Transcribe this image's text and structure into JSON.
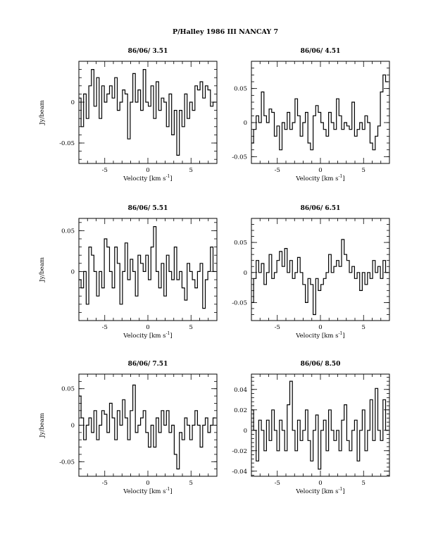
{
  "page_title": "P/Halley 1986 III   NANCAY      7",
  "chart_data": [
    {
      "type": "line",
      "title": "86/06/ 3.51",
      "xlabel": "Velocity [km s",
      "xlabel_sup": "-1",
      "xlabel_end": "]",
      "ylabel": "Jy/beam",
      "xlim": [
        -8,
        8
      ],
      "ylim": [
        -0.075,
        0.05
      ],
      "xticks": [
        -5,
        0,
        5
      ],
      "xtick_labels": [
        "-5",
        "0",
        "5"
      ],
      "yticks": [
        0,
        -0.05
      ],
      "ytick_labels": [
        "0",
        "-0.05"
      ],
      "series": [
        {
          "x": [
            -7.9,
            -7.6,
            -7.3,
            -7.0,
            -6.7,
            -6.4,
            -6.1,
            -5.8,
            -5.5,
            -5.2,
            -4.9,
            -4.6,
            -4.3,
            -4.0,
            -3.7,
            -3.4,
            -3.1,
            -2.8,
            -2.5,
            -2.2,
            -1.9,
            -1.6,
            -1.3,
            -1.0,
            -0.7,
            -0.4,
            -0.1,
            0.2,
            0.5,
            0.8,
            1.1,
            1.4,
            1.7,
            2.0,
            2.3,
            2.6,
            2.9,
            3.2,
            3.5,
            3.8,
            4.1,
            4.4,
            4.7,
            5.0,
            5.3,
            5.6,
            5.9,
            6.2,
            6.5,
            6.8,
            7.1,
            7.4,
            7.7
          ],
          "values": [
            0.005,
            -0.03,
            0.01,
            -0.02,
            0.02,
            0.04,
            -0.005,
            0.03,
            -0.02,
            0.02,
            0.0,
            0.01,
            0.02,
            0.005,
            0.03,
            -0.01,
            0.0,
            0.015,
            0.01,
            -0.045,
            0.0,
            0.035,
            0.0,
            0.015,
            -0.01,
            0.04,
            0.0,
            -0.005,
            0.02,
            -0.02,
            0.025,
            -0.01,
            0.005,
            0.0,
            -0.03,
            0.01,
            -0.04,
            -0.01,
            -0.065,
            -0.01,
            -0.03,
            0.01,
            -0.02,
            0.0,
            -0.01,
            0.02,
            0.015,
            0.025,
            0.005,
            0.02,
            0.015,
            -0.005,
            0.0
          ]
        }
      ]
    },
    {
      "type": "line",
      "title": "86/06/ 4.51",
      "xlabel": "Velocity [km s",
      "xlabel_sup": "-1",
      "xlabel_end": "]",
      "ylabel": "",
      "xlim": [
        -8,
        8
      ],
      "ylim": [
        -0.06,
        0.09
      ],
      "xticks": [
        -5,
        0,
        5
      ],
      "xtick_labels": [
        "-5",
        "0",
        "5"
      ],
      "yticks": [
        0.05,
        0,
        -0.05
      ],
      "ytick_labels": [
        "0.05",
        "0",
        "-0.05"
      ],
      "series": [
        {
          "x": [
            -7.9,
            -7.6,
            -7.3,
            -7.0,
            -6.7,
            -6.4,
            -6.1,
            -5.8,
            -5.5,
            -5.2,
            -4.9,
            -4.6,
            -4.3,
            -4.0,
            -3.7,
            -3.4,
            -3.1,
            -2.8,
            -2.5,
            -2.2,
            -1.9,
            -1.6,
            -1.3,
            -1.0,
            -0.7,
            -0.4,
            -0.1,
            0.2,
            0.5,
            0.8,
            1.1,
            1.4,
            1.7,
            2.0,
            2.3,
            2.6,
            2.9,
            3.2,
            3.5,
            3.8,
            4.1,
            4.4,
            4.7,
            5.0,
            5.3,
            5.6,
            5.9,
            6.2,
            6.5,
            6.8,
            7.1,
            7.4,
            7.7
          ],
          "values": [
            -0.03,
            -0.01,
            0.01,
            0.0,
            0.045,
            0.01,
            0.0,
            0.02,
            0.015,
            -0.02,
            -0.005,
            -0.04,
            0.0,
            -0.01,
            0.015,
            -0.01,
            0.0,
            0.035,
            0.01,
            -0.02,
            0.0,
            0.015,
            -0.03,
            -0.04,
            0.01,
            0.025,
            0.015,
            0.0,
            -0.01,
            -0.02,
            0.015,
            0.0,
            -0.01,
            0.035,
            0.01,
            -0.01,
            0.0,
            -0.005,
            -0.01,
            0.03,
            -0.02,
            -0.01,
            0.0,
            -0.01,
            0.01,
            0.0,
            -0.03,
            -0.04,
            -0.02,
            -0.005,
            0.045,
            0.07,
            0.06
          ]
        }
      ]
    },
    {
      "type": "line",
      "title": "86/06/ 5.51",
      "xlabel": "Velocity [km s",
      "xlabel_sup": "-1",
      "xlabel_end": "]",
      "ylabel": "Jy/beam",
      "xlim": [
        -8,
        8
      ],
      "ylim": [
        -0.06,
        0.065
      ],
      "xticks": [
        -5,
        0,
        5
      ],
      "xtick_labels": [
        "-5",
        "0",
        "5"
      ],
      "yticks": [
        0.05,
        0
      ],
      "ytick_labels": [
        "0.05",
        "0"
      ],
      "series": [
        {
          "x": [
            -7.9,
            -7.6,
            -7.3,
            -7.0,
            -6.7,
            -6.4,
            -6.1,
            -5.8,
            -5.5,
            -5.2,
            -4.9,
            -4.6,
            -4.3,
            -4.0,
            -3.7,
            -3.4,
            -3.1,
            -2.8,
            -2.5,
            -2.2,
            -1.9,
            -1.6,
            -1.3,
            -1.0,
            -0.7,
            -0.4,
            -0.1,
            0.2,
            0.5,
            0.8,
            1.1,
            1.4,
            1.7,
            2.0,
            2.3,
            2.6,
            2.9,
            3.2,
            3.5,
            3.8,
            4.1,
            4.4,
            4.7,
            5.0,
            5.3,
            5.6,
            5.9,
            6.2,
            6.5,
            6.8,
            7.1,
            7.4,
            7.7
          ],
          "values": [
            -0.01,
            -0.02,
            0.0,
            -0.04,
            0.03,
            0.02,
            0.0,
            -0.03,
            0.0,
            -0.02,
            0.04,
            0.03,
            0.0,
            -0.02,
            0.03,
            0.01,
            -0.04,
            0.0,
            0.035,
            -0.01,
            0.015,
            0.0,
            -0.03,
            0.02,
            0.01,
            0.0,
            0.02,
            -0.01,
            0.03,
            0.055,
            0.0,
            -0.02,
            0.01,
            -0.03,
            0.02,
            0.0,
            -0.01,
            0.03,
            -0.01,
            0.0,
            -0.02,
            -0.035,
            0.01,
            0.0,
            -0.01,
            -0.02,
            0.0,
            0.01,
            -0.045,
            -0.01,
            0.0,
            0.03,
            0.0
          ]
        }
      ]
    },
    {
      "type": "line",
      "title": "86/06/ 6.51",
      "xlabel": "Velocity [km s",
      "xlabel_sup": "-1",
      "xlabel_end": "]",
      "ylabel": "",
      "xlim": [
        -8,
        8
      ],
      "ylim": [
        -0.08,
        0.09
      ],
      "xticks": [
        -5,
        0,
        5
      ],
      "xtick_labels": [
        "-5",
        "0",
        "5"
      ],
      "yticks": [
        0.05,
        0,
        -0.05
      ],
      "ytick_labels": [
        "0.05",
        "0",
        "-0.05"
      ],
      "series": [
        {
          "x": [
            -7.9,
            -7.6,
            -7.3,
            -7.0,
            -6.7,
            -6.4,
            -6.1,
            -5.8,
            -5.5,
            -5.2,
            -4.9,
            -4.6,
            -4.3,
            -4.0,
            -3.7,
            -3.4,
            -3.1,
            -2.8,
            -2.5,
            -2.2,
            -1.9,
            -1.6,
            -1.3,
            -1.0,
            -0.7,
            -0.4,
            -0.1,
            0.2,
            0.5,
            0.8,
            1.1,
            1.4,
            1.7,
            2.0,
            2.3,
            2.6,
            2.9,
            3.2,
            3.5,
            3.8,
            4.1,
            4.4,
            4.7,
            5.0,
            5.3,
            5.6,
            5.9,
            6.2,
            6.5,
            6.8,
            7.1,
            7.4,
            7.7
          ],
          "values": [
            -0.05,
            -0.01,
            0.02,
            0.0,
            0.015,
            -0.02,
            0.0,
            0.03,
            -0.01,
            0.0,
            0.02,
            0.035,
            0.01,
            0.04,
            0.0,
            0.02,
            -0.01,
            0.0,
            0.025,
            0.0,
            -0.02,
            -0.05,
            -0.01,
            -0.02,
            -0.07,
            -0.01,
            -0.03,
            -0.02,
            -0.01,
            0.0,
            0.03,
            0.0,
            0.01,
            0.02,
            0.01,
            0.055,
            0.03,
            0.02,
            0.0,
            0.01,
            -0.01,
            0.0,
            -0.03,
            0.0,
            -0.02,
            0.0,
            -0.01,
            0.02,
            0.0,
            0.01,
            -0.01,
            0.02,
            0.0
          ]
        }
      ]
    },
    {
      "type": "line",
      "title": "86/06/ 7.51",
      "xlabel": "Velocity [km s",
      "xlabel_sup": "-1",
      "xlabel_end": "]",
      "ylabel": "Jy/beam",
      "xlim": [
        -8,
        8
      ],
      "ylim": [
        -0.07,
        0.07
      ],
      "xticks": [
        -5,
        0,
        5
      ],
      "xtick_labels": [
        "-5",
        "0",
        "5"
      ],
      "yticks": [
        0.05,
        0,
        -0.05
      ],
      "ytick_labels": [
        "0.05",
        "0",
        "-0.05"
      ],
      "series": [
        {
          "x": [
            -7.9,
            -7.6,
            -7.3,
            -7.0,
            -6.7,
            -6.4,
            -6.1,
            -5.8,
            -5.5,
            -5.2,
            -4.9,
            -4.6,
            -4.3,
            -4.0,
            -3.7,
            -3.4,
            -3.1,
            -2.8,
            -2.5,
            -2.2,
            -1.9,
            -1.6,
            -1.3,
            -1.0,
            -0.7,
            -0.4,
            -0.1,
            0.2,
            0.5,
            0.8,
            1.1,
            1.4,
            1.7,
            2.0,
            2.3,
            2.6,
            2.9,
            3.2,
            3.5,
            3.8,
            4.1,
            4.4,
            4.7,
            5.0,
            5.3,
            5.6,
            5.9,
            6.2,
            6.5,
            6.8,
            7.1,
            7.4,
            7.7
          ],
          "values": [
            0.04,
            0.01,
            -0.02,
            0.0,
            0.01,
            -0.01,
            0.02,
            -0.02,
            0.0,
            0.02,
            0.015,
            -0.01,
            0.03,
            0.01,
            -0.02,
            0.02,
            0.0,
            0.035,
            0.01,
            -0.02,
            0.02,
            0.055,
            -0.01,
            0.0,
            0.01,
            0.02,
            -0.01,
            -0.03,
            0.0,
            -0.03,
            0.01,
            -0.01,
            0.02,
            0.0,
            0.02,
            -0.01,
            0.0,
            -0.04,
            -0.06,
            -0.01,
            -0.02,
            0.01,
            0.0,
            -0.02,
            0.0,
            0.02,
            0.0,
            -0.03,
            0.0,
            0.01,
            -0.01,
            0.0,
            0.01
          ]
        }
      ]
    },
    {
      "type": "line",
      "title": "86/06/ 8.50",
      "xlabel": "Velocity [km s",
      "xlabel_sup": "-1",
      "xlabel_end": "]",
      "ylabel": "",
      "xlim": [
        -8,
        8
      ],
      "ylim": [
        -0.045,
        0.055
      ],
      "xticks": [
        -5,
        0,
        5
      ],
      "xtick_labels": [
        "-5",
        "0",
        "5"
      ],
      "yticks": [
        0.04,
        0.02,
        0,
        -0.02,
        -0.04
      ],
      "ytick_labels": [
        "0.04",
        "0.02",
        "0",
        "-0.02",
        "-0.04"
      ],
      "series": [
        {
          "x": [
            -7.9,
            -7.6,
            -7.3,
            -7.0,
            -6.7,
            -6.4,
            -6.1,
            -5.8,
            -5.5,
            -5.2,
            -4.9,
            -4.6,
            -4.3,
            -4.0,
            -3.7,
            -3.4,
            -3.1,
            -2.8,
            -2.5,
            -2.2,
            -1.9,
            -1.6,
            -1.3,
            -1.0,
            -0.7,
            -0.4,
            -0.1,
            0.2,
            0.5,
            0.8,
            1.1,
            1.4,
            1.7,
            2.0,
            2.3,
            2.6,
            2.9,
            3.2,
            3.5,
            3.8,
            4.1,
            4.4,
            4.7,
            5.0,
            5.3,
            5.6,
            5.9,
            6.2,
            6.5,
            6.8,
            7.1,
            7.4,
            7.7
          ],
          "values": [
            0.02,
            0.0,
            -0.03,
            0.01,
            0.0,
            -0.02,
            0.01,
            -0.01,
            0.02,
            0.0,
            -0.02,
            0.01,
            0.0,
            -0.02,
            0.025,
            0.048,
            0.0,
            -0.02,
            0.01,
            -0.01,
            0.0,
            0.02,
            -0.01,
            -0.03,
            0.0,
            0.015,
            -0.038,
            0.0,
            0.01,
            -0.02,
            0.02,
            0.0,
            -0.01,
            0.0,
            -0.02,
            0.01,
            0.025,
            -0.01,
            -0.02,
            0.0,
            0.01,
            -0.03,
            0.0,
            0.02,
            -0.02,
            0.0,
            0.03,
            -0.01,
            0.041,
            0.0,
            -0.01,
            0.03,
            0.0
          ]
        }
      ]
    }
  ]
}
